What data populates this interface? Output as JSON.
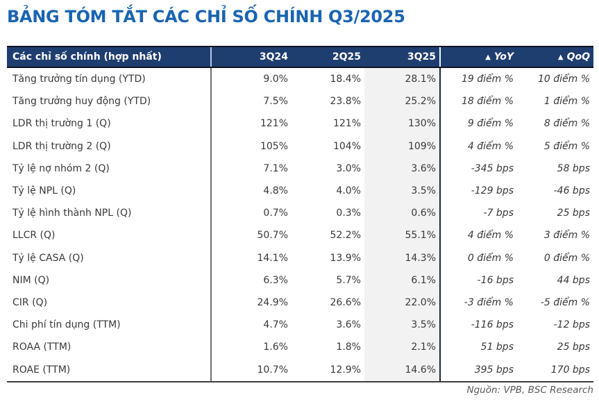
{
  "title": "BẢNG TÓM TẮT CÁC CHỈ SỐ CHÍNH Q3/2025",
  "colors": {
    "title_color": "#1A64B0",
    "header_bg": "#1F3E70",
    "highlight_bg": "#F2F2F2",
    "body_text": "#383838"
  },
  "table": {
    "header": {
      "metrics": "Các chỉ số chính (hợp nhất)",
      "q3_24": "3Q24",
      "q2_25": "2Q25",
      "q3_25": "3Q25",
      "delta_icon": "▲",
      "yoy": "YoY",
      "qoq": "QoQ"
    },
    "rows": [
      {
        "label": "Tăng trưởng tín dụng (YTD)",
        "q3_24": "9.0%",
        "q2_25": "18.4%",
        "q3_25": "28.1%",
        "yoy": "19 điểm %",
        "qoq": "10 điểm %"
      },
      {
        "label": "Tăng trưởng huy động (YTD)",
        "q3_24": "7.5%",
        "q2_25": "23.8%",
        "q3_25": "25.2%",
        "yoy": "18 điểm %",
        "qoq": "1 điểm %"
      },
      {
        "label": "LDR thị trường 1 (Q)",
        "q3_24": "121%",
        "q2_25": "121%",
        "q3_25": "130%",
        "yoy": "9 điểm %",
        "qoq": "8 điểm %"
      },
      {
        "label": "LDR thị trường 2 (Q)",
        "q3_24": "105%",
        "q2_25": "104%",
        "q3_25": "109%",
        "yoy": "4 điểm %",
        "qoq": "5 điểm %"
      },
      {
        "label": "Tỷ lệ nợ nhóm 2 (Q)",
        "q3_24": "7.1%",
        "q2_25": "3.0%",
        "q3_25": "3.6%",
        "yoy": "-345 bps",
        "qoq": "58 bps"
      },
      {
        "label": "Tỷ lệ NPL (Q)",
        "q3_24": "4.8%",
        "q2_25": "4.0%",
        "q3_25": "3.5%",
        "yoy": "-129 bps",
        "qoq": "-46 bps"
      },
      {
        "label": "Tỷ lệ hình thành NPL (Q)",
        "q3_24": "0.7%",
        "q2_25": "0.3%",
        "q3_25": "0.6%",
        "yoy": "-7 bps",
        "qoq": "25 bps"
      },
      {
        "label": "LLCR (Q)",
        "q3_24": "50.7%",
        "q2_25": "52.2%",
        "q3_25": "55.1%",
        "yoy": "4 điểm %",
        "qoq": "3 điểm %"
      },
      {
        "label": "Tỷ lệ CASA (Q)",
        "q3_24": "14.1%",
        "q2_25": "13.9%",
        "q3_25": "14.3%",
        "yoy": "0 điểm %",
        "qoq": "0 điểm %"
      },
      {
        "label": "NIM (Q)",
        "q3_24": "6.3%",
        "q2_25": "5.7%",
        "q3_25": "6.1%",
        "yoy": "-16 bps",
        "qoq": "44 bps"
      },
      {
        "label": "CIR (Q)",
        "q3_24": "24.9%",
        "q2_25": "26.6%",
        "q3_25": "22.0%",
        "yoy": "-3 điểm %",
        "qoq": "-5 điểm %"
      },
      {
        "label": "Chi phí tín dụng (TTM)",
        "q3_24": "4.7%",
        "q2_25": "3.6%",
        "q3_25": "3.5%",
        "yoy": "-116 bps",
        "qoq": "-12 bps"
      },
      {
        "label": "ROAA (TTM)",
        "q3_24": "1.6%",
        "q2_25": "1.8%",
        "q3_25": "2.1%",
        "yoy": "51 bps",
        "qoq": "25 bps"
      },
      {
        "label": "ROAE (TTM)",
        "q3_24": "10.7%",
        "q2_25": "12.9%",
        "q3_25": "14.6%",
        "yoy": "395 bps",
        "qoq": "170 bps"
      }
    ]
  },
  "footer": {
    "source": "Nguồn: VPB, BSC Research"
  }
}
